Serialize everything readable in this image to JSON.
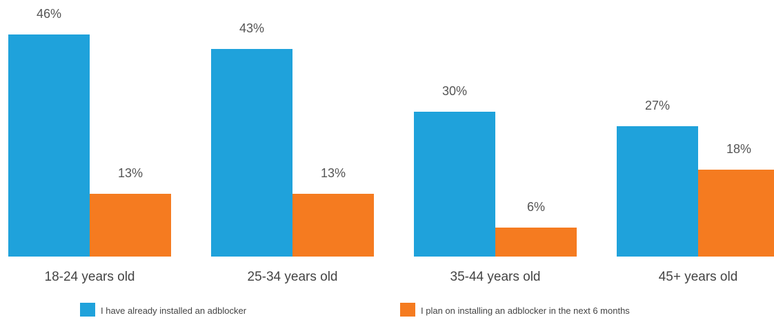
{
  "chart_data": {
    "type": "bar",
    "title": "",
    "xlabel": "",
    "ylabel": "",
    "ylim": [
      0,
      46
    ],
    "grid": false,
    "legend_position": "bottom",
    "categories": [
      "18-24 years old",
      "25-34 years old",
      "35-44 years old",
      "45+ years old"
    ],
    "series": [
      {
        "name": "I have already installed an adblocker",
        "color": "#1fa2db",
        "values": [
          46,
          43,
          30,
          27
        ],
        "labels": [
          "46%",
          "43%",
          "30%",
          "27%"
        ]
      },
      {
        "name": "I plan on installing an adblocker in the next 6 months",
        "color": "#f57b20",
        "values": [
          13,
          13,
          6,
          18
        ],
        "labels": [
          "13%",
          "13%",
          "6%",
          "18%"
        ]
      }
    ]
  }
}
